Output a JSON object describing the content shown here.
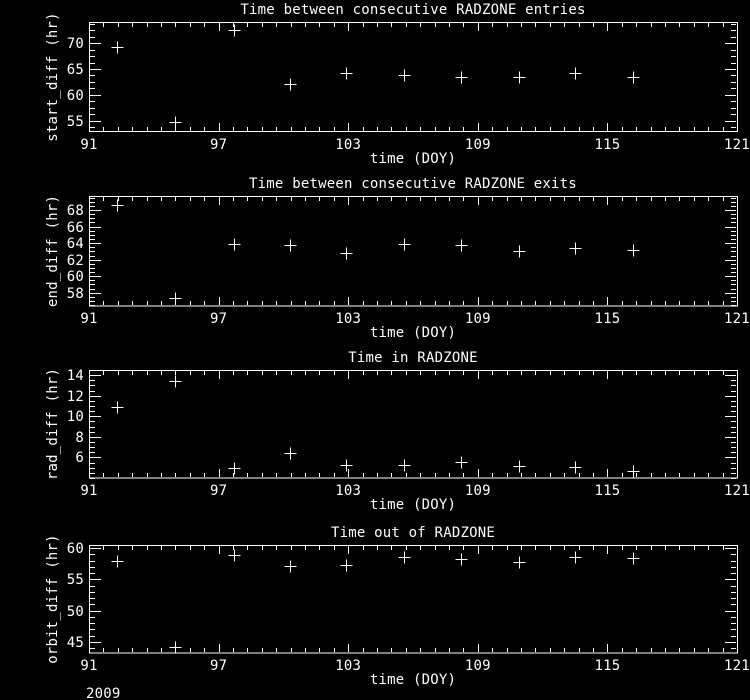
{
  "page": {
    "background_color": "#000000",
    "foreground_color": "#ffffff",
    "year_label": "2009"
  },
  "chart_data": [
    {
      "type": "scatter",
      "title": "Time between consecutive RADZONE entries",
      "xlabel": "time (DOY)",
      "ylabel": "start_diff (hr)",
      "marker": "plus",
      "xlim": [
        91,
        121
      ],
      "ylim": [
        52.8,
        74.1
      ],
      "xticks": [
        91,
        97,
        103,
        109,
        115,
        121
      ],
      "yticks": [
        55,
        60,
        65,
        70
      ],
      "x_minor_step": 0.6667,
      "y_minor_step": 1.25,
      "x": [
        92.3,
        95.0,
        97.7,
        100.3,
        102.9,
        105.6,
        108.2,
        110.9,
        113.5,
        116.2
      ],
      "y": [
        69.2,
        54.7,
        72.5,
        62.0,
        64.2,
        63.9,
        63.4,
        63.4,
        64.2,
        63.5
      ]
    },
    {
      "type": "scatter",
      "title": "Time between consecutive RADZONE exits",
      "xlabel": "time (DOY)",
      "ylabel": "end_diff (hr)",
      "marker": "plus",
      "xlim": [
        91,
        121
      ],
      "ylim": [
        56.4,
        69.7
      ],
      "xticks": [
        91,
        97,
        103,
        109,
        115,
        121
      ],
      "yticks": [
        58,
        60,
        62,
        64,
        66,
        68
      ],
      "x_minor_step": 0.6667,
      "y_minor_step": 0.5,
      "x": [
        92.3,
        95.0,
        97.7,
        100.3,
        102.9,
        105.6,
        108.2,
        110.9,
        113.5,
        116.2
      ],
      "y": [
        68.6,
        57.4,
        63.9,
        63.8,
        62.8,
        63.9,
        63.8,
        63.1,
        63.4,
        63.2
      ]
    },
    {
      "type": "scatter",
      "title": "Time in RADZONE",
      "xlabel": "time (DOY)",
      "ylabel": "rad_diff (hr)",
      "marker": "plus",
      "xlim": [
        91,
        121
      ],
      "ylim": [
        4.0,
        14.5
      ],
      "xticks": [
        91,
        97,
        103,
        109,
        115,
        121
      ],
      "yticks": [
        6,
        8,
        10,
        12,
        14
      ],
      "x_minor_step": 0.6667,
      "y_minor_step": 0.5,
      "x": [
        92.3,
        95.0,
        97.7,
        100.3,
        102.9,
        105.6,
        108.2,
        110.9,
        113.5,
        116.2
      ],
      "y": [
        10.9,
        13.4,
        5.0,
        6.4,
        5.3,
        5.3,
        5.6,
        5.2,
        5.1,
        4.7
      ]
    },
    {
      "type": "scatter",
      "title": "Time out of RADZONE",
      "xlabel": "time (DOY)",
      "ylabel": "orbit_diff (hr)",
      "marker": "plus",
      "xlim": [
        91,
        121
      ],
      "ylim": [
        43.2,
        60.5
      ],
      "xticks": [
        91,
        97,
        103,
        109,
        115,
        121
      ],
      "yticks": [
        45,
        50,
        55,
        60
      ],
      "x_minor_step": 0.6667,
      "y_minor_step": 1.0,
      "x": [
        92.3,
        95.0,
        97.7,
        100.3,
        102.9,
        105.6,
        108.2,
        110.9,
        113.5,
        116.2
      ],
      "y": [
        57.9,
        44.2,
        58.9,
        57.1,
        57.3,
        58.5,
        58.2,
        57.7,
        58.6,
        58.4
      ]
    }
  ]
}
